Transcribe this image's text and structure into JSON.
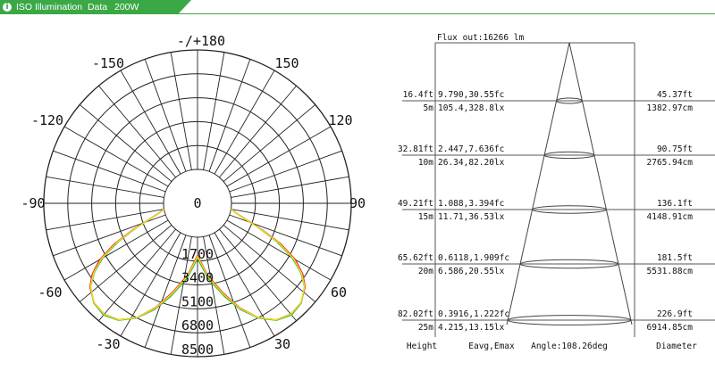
{
  "header": {
    "title": "ISO Illumination  Data",
    "power": "200W",
    "accent_color": "#3aa845",
    "icon": "info-dot-icon"
  },
  "chart_data": [
    {
      "type": "polar",
      "angle_labels": [
        "-/+180",
        "-150",
        "150",
        "-120",
        "120",
        "-90",
        "90",
        "-60",
        "60",
        "-30",
        "30",
        "0"
      ],
      "radial_labels": [
        "1700",
        "3400",
        "5100",
        "6800",
        "8500"
      ],
      "radial_max": 8500,
      "series": [
        {
          "color": "#e8262d",
          "values": [
            [
              0,
              1300
            ],
            [
              8,
              2800
            ],
            [
              16,
              4300
            ],
            [
              22,
              5700
            ],
            [
              28,
              6900
            ],
            [
              34,
              7700
            ],
            [
              40,
              8000
            ],
            [
              46,
              7900
            ],
            [
              52,
              7400
            ],
            [
              56,
              6700
            ],
            [
              60,
              5700
            ],
            [
              64,
              4200
            ],
            [
              68,
              2500
            ],
            [
              72,
              1100
            ],
            [
              76,
              400
            ],
            [
              80,
              0
            ]
          ]
        },
        {
          "color": "#27b23a",
          "values": [
            [
              0,
              1500
            ],
            [
              8,
              3000
            ],
            [
              16,
              4500
            ],
            [
              22,
              5800
            ],
            [
              28,
              6900
            ],
            [
              34,
              7700
            ],
            [
              40,
              8050
            ],
            [
              46,
              7900
            ],
            [
              52,
              7300
            ],
            [
              56,
              6500
            ],
            [
              60,
              5400
            ],
            [
              64,
              3900
            ],
            [
              68,
              2300
            ],
            [
              72,
              1000
            ],
            [
              76,
              300
            ],
            [
              80,
              0
            ]
          ]
        },
        {
          "color": "#f2dd1c",
          "values": [
            [
              0,
              1400
            ],
            [
              8,
              2900
            ],
            [
              16,
              4400
            ],
            [
              22,
              5750
            ],
            [
              28,
              6900
            ],
            [
              34,
              7700
            ],
            [
              40,
              8020
            ],
            [
              46,
              7900
            ],
            [
              52,
              7350
            ],
            [
              56,
              6600
            ],
            [
              60,
              5550
            ],
            [
              64,
              4050
            ],
            [
              68,
              2400
            ],
            [
              72,
              1050
            ],
            [
              76,
              350
            ],
            [
              80,
              0
            ]
          ]
        }
      ]
    },
    {
      "type": "table",
      "flux": "Flux out:16266 lm",
      "rows": [
        {
          "height_ft": "16.4ft",
          "height_m": "5m",
          "fc": "9.790,30.55fc",
          "lx": "105.4,328.8lx",
          "dia_ft": "45.37ft",
          "dia_cm": "1382.97cm"
        },
        {
          "height_ft": "32.81ft",
          "height_m": "10m",
          "fc": "2.447,7.636fc",
          "lx": "26.34,82.20lx",
          "dia_ft": "90.75ft",
          "dia_cm": "2765.94cm"
        },
        {
          "height_ft": "49.21ft",
          "height_m": "15m",
          "fc": "1.088,3.394fc",
          "lx": "11.71,36.53lx",
          "dia_ft": "136.1ft",
          "dia_cm": "4148.91cm"
        },
        {
          "height_ft": "65.62ft",
          "height_m": "20m",
          "fc": "0.6118,1.909fc",
          "lx": "6.586,20.55lx",
          "dia_ft": "181.5ft",
          "dia_cm": "5531.88cm"
        },
        {
          "height_ft": "82.02ft",
          "height_m": "25m",
          "fc": "0.3916,1.222fc",
          "lx": "4.215,13.15lx",
          "dia_ft": "226.9ft",
          "dia_cm": "6914.85cm"
        }
      ],
      "footer": {
        "height": "Height",
        "eavg": "Eavg,Emax",
        "angle": "Angle:108.26deg",
        "diameter": "Diameter"
      }
    }
  ]
}
